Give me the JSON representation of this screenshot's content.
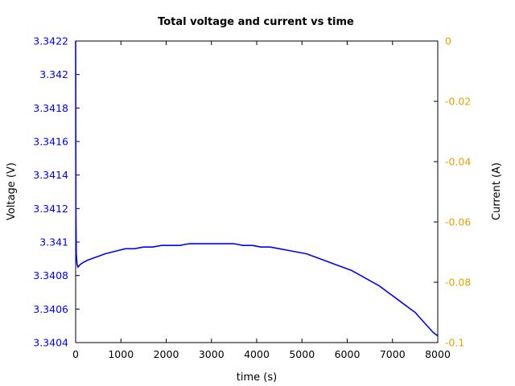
{
  "chart_data": {
    "type": "line",
    "title": "Total voltage and current vs time",
    "xlabel": "time (s)",
    "ylabel": "Voltage (V)",
    "y2label": "Current (A)",
    "xlim": [
      0,
      8000
    ],
    "ylim": [
      3.3404,
      3.3422
    ],
    "y2lim": [
      -0.1,
      0
    ],
    "x_ticks": [
      0,
      1000,
      2000,
      3000,
      4000,
      5000,
      6000,
      7000,
      8000
    ],
    "x_tick_labels": [
      "0",
      "1000",
      "2000",
      "3000",
      "4000",
      "5000",
      "6000",
      "7000",
      "8000"
    ],
    "y_ticks": [
      3.3404,
      3.3406,
      3.3408,
      3.341,
      3.3412,
      3.3414,
      3.3416,
      3.3418,
      3.342,
      3.3422
    ],
    "y_tick_labels": [
      "3.3404",
      "3.3406",
      "3.3408",
      "3.341",
      "3.3412",
      "3.3414",
      "3.3416",
      "3.3418",
      "3.342",
      "3.3422"
    ],
    "y2_ticks": [
      0,
      -0.02,
      -0.04,
      -0.06,
      -0.08,
      -0.1
    ],
    "y2_tick_labels": [
      "0",
      "-0.02",
      "-0.04",
      "-0.06",
      "-0.08",
      "-0.1"
    ],
    "grid": false,
    "colors": {
      "voltage": "#0000ff",
      "current_axis": "#e8a000",
      "frame": "#000000"
    },
    "series": [
      {
        "axis": "left",
        "color": "#0000ff",
        "x": [
          0,
          5,
          15,
          30,
          50,
          80,
          120,
          180,
          250,
          350,
          450,
          550,
          650,
          800,
          950,
          1100,
          1300,
          1500,
          1700,
          1900,
          2100,
          2300,
          2500,
          2700,
          2900,
          3100,
          3300,
          3500,
          3700,
          3900,
          4100,
          4300,
          4500,
          4700,
          4900,
          5100,
          5300,
          5500,
          5700,
          5900,
          6100,
          6300,
          6500,
          6700,
          6900,
          7100,
          7300,
          7500,
          7700,
          7900,
          8000
        ],
        "y": [
          3.3422,
          3.3412,
          3.34093,
          3.34087,
          3.34085,
          3.34086,
          3.34087,
          3.34088,
          3.34089,
          3.3409,
          3.34091,
          3.34092,
          3.34093,
          3.34094,
          3.34095,
          3.34096,
          3.34096,
          3.34097,
          3.34097,
          3.34098,
          3.34098,
          3.34098,
          3.34099,
          3.34099,
          3.34099,
          3.34099,
          3.34099,
          3.34099,
          3.34098,
          3.34098,
          3.34097,
          3.34097,
          3.34096,
          3.34095,
          3.34094,
          3.34093,
          3.34091,
          3.34089,
          3.34087,
          3.34085,
          3.34083,
          3.3408,
          3.34077,
          3.34074,
          3.3407,
          3.34066,
          3.34062,
          3.34058,
          3.34052,
          3.34046,
          3.34044
        ]
      }
    ]
  }
}
